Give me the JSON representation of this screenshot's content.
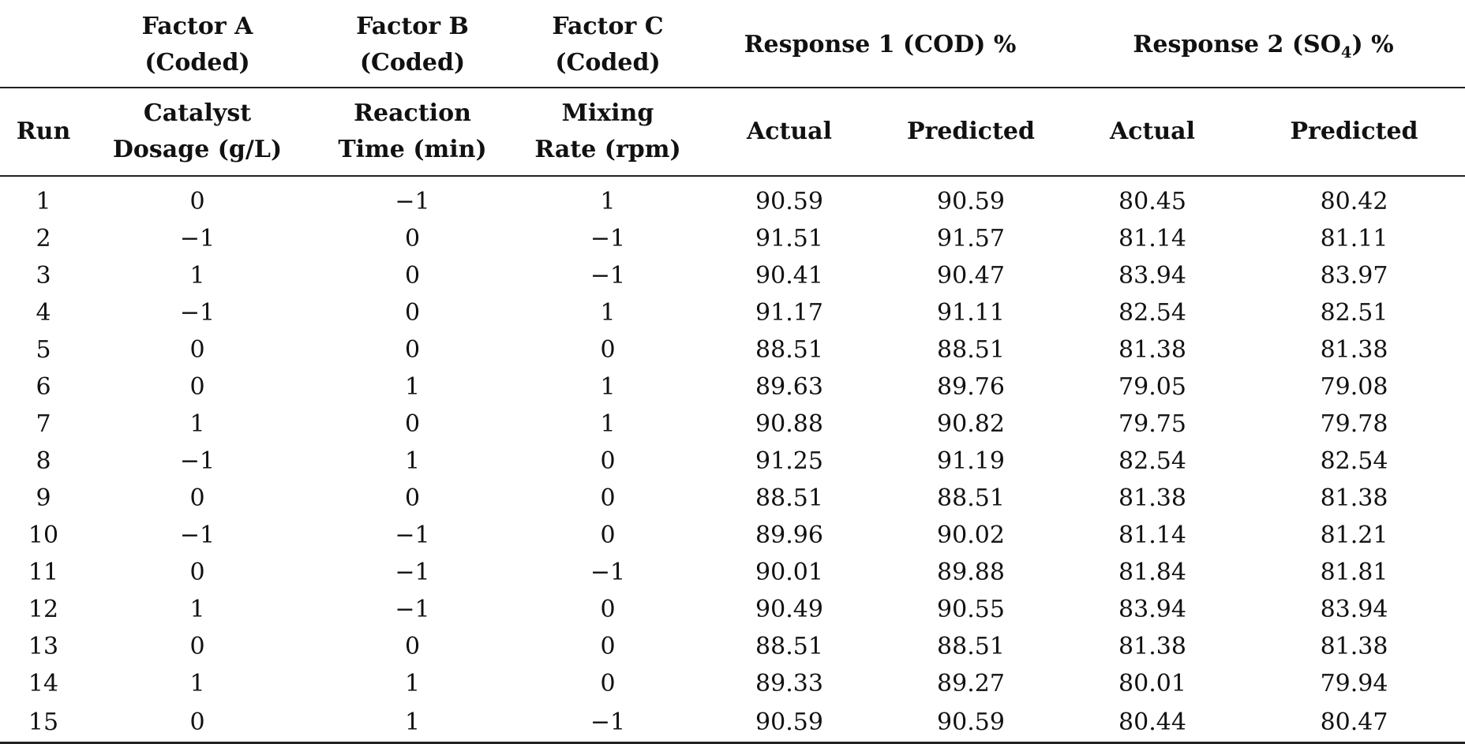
{
  "table": {
    "group_headers": {
      "factor_a": [
        "Factor A",
        "(Coded)"
      ],
      "factor_b": [
        "Factor B",
        "(Coded)"
      ],
      "factor_c": [
        "Factor C",
        "(Coded)"
      ],
      "response1": "Response 1 (COD) %",
      "response2_prefix": "Response 2 (SO",
      "response2_sub": "4",
      "response2_suffix": ") %"
    },
    "sub_headers": {
      "run": "Run",
      "factor_a": [
        "Catalyst",
        "Dosage (g/L)"
      ],
      "factor_b": [
        "Reaction",
        "Time (min)"
      ],
      "factor_c": [
        "Mixing",
        "Rate (rpm)"
      ],
      "r1_actual": "Actual",
      "r1_predicted": "Predicted",
      "r2_actual": "Actual",
      "r2_predicted": "Predicted"
    },
    "rows": [
      [
        "1",
        "0",
        "−1",
        "1",
        "90.59",
        "90.59",
        "80.45",
        "80.42"
      ],
      [
        "2",
        "−1",
        "0",
        "−1",
        "91.51",
        "91.57",
        "81.14",
        "81.11"
      ],
      [
        "3",
        "1",
        "0",
        "−1",
        "90.41",
        "90.47",
        "83.94",
        "83.97"
      ],
      [
        "4",
        "−1",
        "0",
        "1",
        "91.17",
        "91.11",
        "82.54",
        "82.51"
      ],
      [
        "5",
        "0",
        "0",
        "0",
        "88.51",
        "88.51",
        "81.38",
        "81.38"
      ],
      [
        "6",
        "0",
        "1",
        "1",
        "89.63",
        "89.76",
        "79.05",
        "79.08"
      ],
      [
        "7",
        "1",
        "0",
        "1",
        "90.88",
        "90.82",
        "79.75",
        "79.78"
      ],
      [
        "8",
        "−1",
        "1",
        "0",
        "91.25",
        "91.19",
        "82.54",
        "82.54"
      ],
      [
        "9",
        "0",
        "0",
        "0",
        "88.51",
        "88.51",
        "81.38",
        "81.38"
      ],
      [
        "10",
        "−1",
        "−1",
        "0",
        "89.96",
        "90.02",
        "81.14",
        "81.21"
      ],
      [
        "11",
        "0",
        "−1",
        "−1",
        "90.01",
        "89.88",
        "81.84",
        "81.81"
      ],
      [
        "12",
        "1",
        "−1",
        "0",
        "90.49",
        "90.55",
        "83.94",
        "83.94"
      ],
      [
        "13",
        "0",
        "0",
        "0",
        "88.51",
        "88.51",
        "81.38",
        "81.38"
      ],
      [
        "14",
        "1",
        "1",
        "0",
        "89.33",
        "89.27",
        "80.01",
        "79.94"
      ],
      [
        "15",
        "0",
        "1",
        "−1",
        "90.59",
        "90.59",
        "80.44",
        "80.47"
      ]
    ]
  }
}
